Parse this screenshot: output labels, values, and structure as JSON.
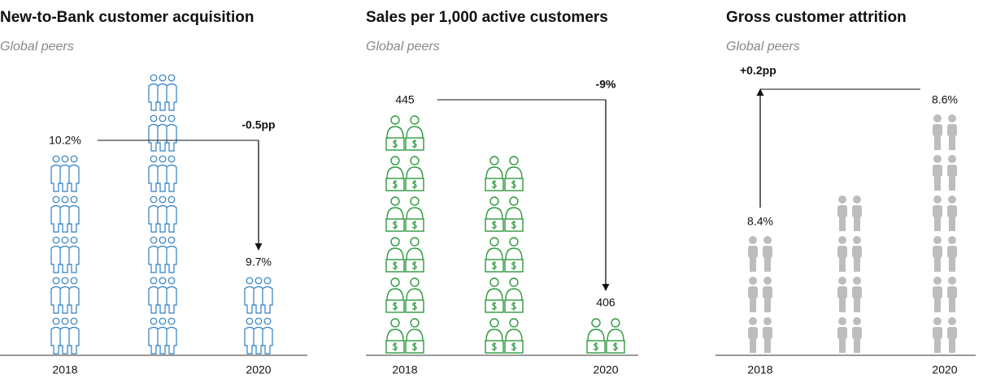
{
  "chart_data": [
    {
      "type": "pictogram",
      "title": "New-to-Bank customer acquisition",
      "subtitle": "Global peers",
      "categories": [
        "2018",
        null,
        "2020"
      ],
      "values": [
        10.2,
        10.5,
        9.7
      ],
      "value_labels": [
        "10.2%",
        null,
        "9.7%"
      ],
      "annotation": "-0.5pp",
      "color": "#2f7fc1",
      "icon": "group",
      "ylim": [
        9.37,
        10.54
      ]
    },
    {
      "type": "pictogram",
      "title": "Sales per 1,000 active customers",
      "subtitle": "Global peers",
      "categories": [
        "2018",
        null,
        "2020"
      ],
      "values": [
        445,
        437,
        406
      ],
      "annotation": "-9%",
      "color": "#2e9a3e",
      "icon": "seller",
      "ylim": [
        398,
        452.6
      ]
    },
    {
      "type": "pictogram",
      "title": "Gross customer attrition",
      "subtitle": "Global peers",
      "categories": [
        "2018",
        null,
        "2020"
      ],
      "values": [
        8.4,
        8.47,
        8.6
      ],
      "value_labels": [
        "8.4%",
        null,
        "8.6%"
      ],
      "annotation": "+0.2pp",
      "color": "#bdbdbd",
      "icon": "solid",
      "ylim": [
        8.2,
        8.67
      ]
    }
  ]
}
